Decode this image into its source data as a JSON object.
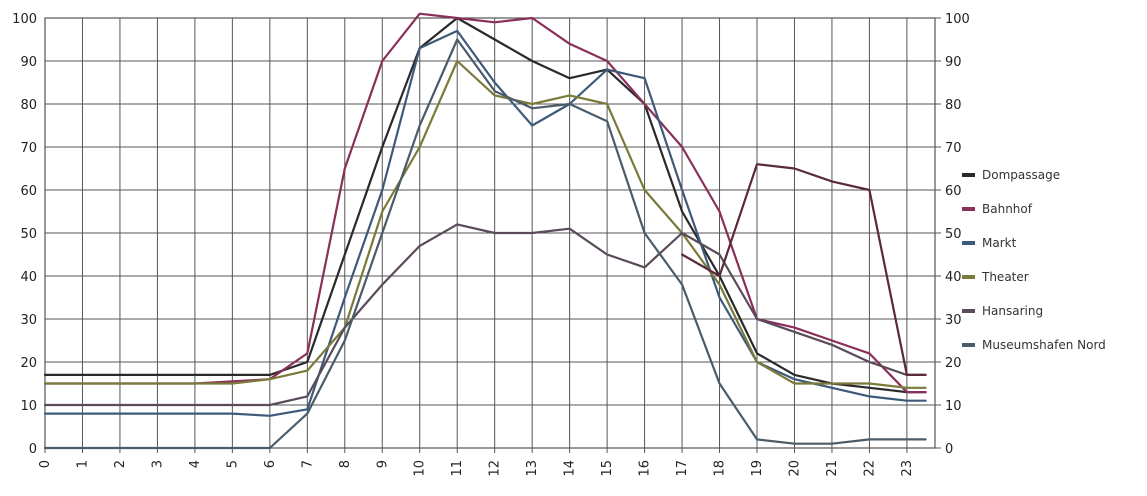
{
  "chart_data": {
    "type": "line",
    "title": "",
    "xlabel": "",
    "ylabel": "",
    "ylim": [
      0,
      100
    ],
    "y_ticks": [
      "0",
      "10",
      "20",
      "30",
      "40",
      "50",
      "60",
      "70",
      "80",
      "90",
      "100"
    ],
    "x_ticks": [
      "0",
      "1",
      "2",
      "3",
      "4",
      "5",
      "6",
      "7",
      "8",
      "9",
      "10",
      "11",
      "12",
      "13",
      "14",
      "15",
      "16",
      "17",
      "18",
      "19",
      "20",
      "21",
      "22",
      "23"
    ],
    "grid": true,
    "legend_position": "right",
    "x": [
      0,
      1,
      2,
      3,
      4,
      5,
      6,
      7,
      8,
      9,
      10,
      11,
      12,
      13,
      14,
      15,
      16,
      17,
      18,
      19,
      20,
      21,
      22,
      23,
      23.5
    ],
    "series": [
      {
        "name": "Dompassage",
        "color": "#2a2a2a",
        "values": [
          17,
          17,
          17,
          17,
          17,
          17,
          17,
          20,
          45,
          70,
          93,
          100,
          95,
          90,
          86,
          88,
          80,
          55,
          40,
          22,
          17,
          15,
          14,
          13,
          13
        ]
      },
      {
        "name": "Bahnhof",
        "color": "#8a2f5a",
        "values": [
          15,
          15,
          15,
          15,
          15,
          15.5,
          16,
          22,
          65,
          90,
          101,
          100,
          99,
          100,
          94,
          90,
          80,
          70,
          55,
          30,
          28,
          25,
          22,
          13,
          13
        ]
      },
      {
        "name": "Markt",
        "color": "#3d5a7a",
        "values": [
          8,
          8,
          8,
          8,
          8,
          8,
          7.5,
          9,
          35,
          60,
          93,
          97,
          85,
          75,
          80,
          88,
          86,
          60,
          35,
          20,
          16,
          14,
          12,
          11,
          11
        ]
      },
      {
        "name": "Theater",
        "color": "#7a7a3a",
        "values": [
          15,
          15,
          15,
          15,
          15,
          15,
          16,
          18,
          28,
          55,
          70,
          90,
          82,
          80,
          82,
          80,
          60,
          50,
          38,
          20,
          15,
          15,
          15,
          14,
          14
        ]
      },
      {
        "name": "Hansaring",
        "color": "#5a4a5a",
        "values": [
          10,
          10,
          10,
          10,
          10,
          10,
          10,
          12,
          28,
          38,
          47,
          52,
          50,
          50,
          51,
          45,
          42,
          50,
          45,
          30,
          27,
          24,
          20,
          17,
          17
        ]
      },
      {
        "name": "Museumshafen Nord",
        "color": "#4a5c6a",
        "values": [
          0,
          0,
          0,
          0,
          0,
          0,
          0,
          8,
          25,
          50,
          75,
          95,
          83,
          79,
          80,
          76,
          50,
          38,
          15,
          2,
          1,
          1,
          2,
          2,
          2
        ]
      },
      {
        "name": "",
        "color": "#5a2a3a",
        "values": [
          null,
          null,
          null,
          null,
          null,
          null,
          null,
          null,
          null,
          null,
          null,
          null,
          null,
          null,
          null,
          null,
          null,
          45,
          40,
          66,
          65,
          62,
          60,
          17,
          17
        ]
      }
    ]
  }
}
